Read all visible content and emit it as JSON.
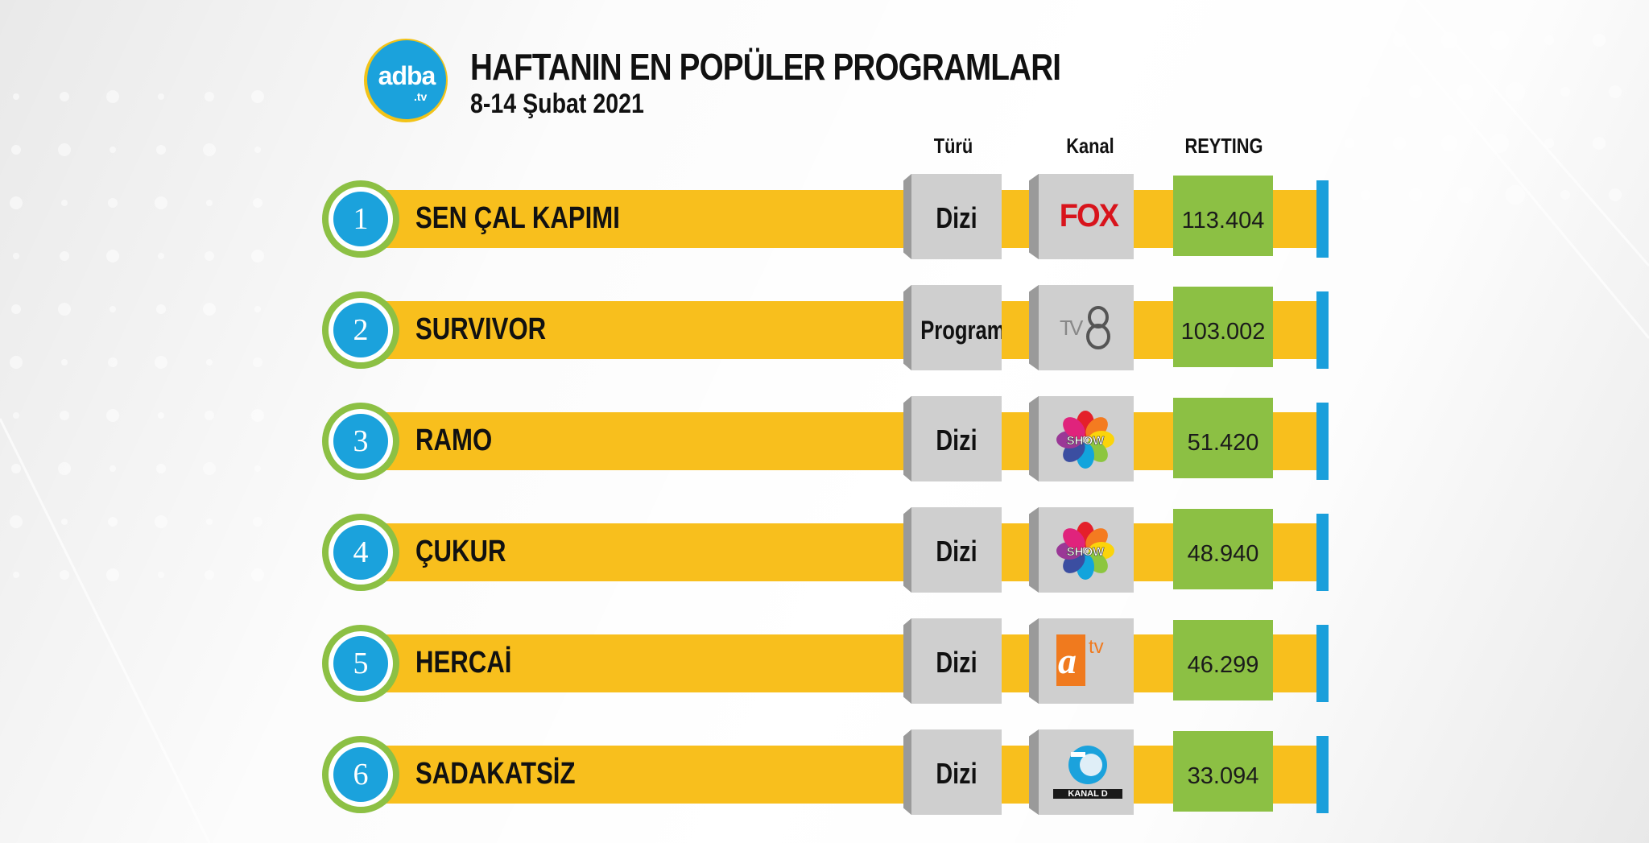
{
  "header": {
    "logo_text": "adba",
    "logo_sub": ".tv",
    "title": "HAFTANIN EN POPÜLER PROGRAMLARI",
    "subtitle": "8-14 Şubat  2021"
  },
  "columns": {
    "type": "Türü",
    "channel": "Kanal",
    "rating": "REYTING"
  },
  "rows": [
    {
      "rank": "1",
      "name": "SEN ÇAL KAPIMI",
      "type": "Dizi",
      "channel": "FOX",
      "channel_icon": "fox-logo-icon",
      "rating": "113.404"
    },
    {
      "rank": "2",
      "name": "SURVIVOR",
      "type": "Program",
      "channel": "TV8",
      "channel_icon": "tv8-logo-icon",
      "rating": "103.002"
    },
    {
      "rank": "3",
      "name": "RAMO",
      "type": "Dizi",
      "channel": "SHOW",
      "channel_icon": "show-logo-icon",
      "rating": "51.420"
    },
    {
      "rank": "4",
      "name": "ÇUKUR",
      "type": "Dizi",
      "channel": "SHOW",
      "channel_icon": "show-logo-icon",
      "rating": "48.940"
    },
    {
      "rank": "5",
      "name": "HERCAİ",
      "type": "Dizi",
      "channel": "atv",
      "channel_icon": "atv-logo-icon",
      "rating": "46.299"
    },
    {
      "rank": "6",
      "name": "SADAKATSİZ",
      "type": "Dizi",
      "channel": "KANAL D",
      "channel_icon": "kanald-logo-icon",
      "rating": "33.094"
    }
  ],
  "colors": {
    "bar": "#f8bf1d",
    "accent_blue": "#1ba2dc",
    "green": "#8cc044",
    "gray_box": "#cfcfcf"
  },
  "chart_data": {
    "type": "table",
    "title": "HAFTANIN EN POPÜLER PROGRAMLARI",
    "subtitle": "8-14 Şubat  2021",
    "columns": [
      "",
      "",
      "Türü",
      "Kanal",
      "REYTING"
    ],
    "rows": [
      [
        "1",
        "SEN ÇAL KAPIMI",
        "Dizi",
        "FOX",
        "113.404"
      ],
      [
        "2",
        "SURVIVOR",
        "Program",
        "TV8",
        "103.002"
      ],
      [
        "3",
        "RAMO",
        "Dizi",
        "SHOW",
        "51.420"
      ],
      [
        "4",
        "ÇUKUR",
        "Dizi",
        "SHOW",
        "48.940"
      ],
      [
        "5",
        "HERCAİ",
        "Dizi",
        "atv",
        "46.299"
      ],
      [
        "6",
        "SADAKATSİZ",
        "Dizi",
        "KANAL D",
        "33.094"
      ]
    ],
    "values": [
      113404,
      103002,
      51420,
      48940,
      46299,
      33094
    ]
  }
}
